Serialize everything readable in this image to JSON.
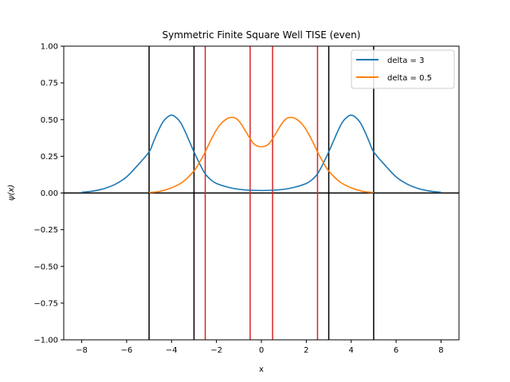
{
  "chart_data": {
    "type": "line",
    "title": "Symmetric Finite Square Well TISE (even)",
    "xlabel": "x",
    "ylabel": "ψ(x)",
    "xlim": [
      -8.8,
      8.8
    ],
    "ylim": [
      -1.0,
      1.0
    ],
    "xticks": [
      -8,
      -6,
      -4,
      -2,
      0,
      2,
      4,
      6,
      8
    ],
    "xtick_labels": [
      "−8",
      "−6",
      "−4",
      "−2",
      "0",
      "2",
      "4",
      "6",
      "8"
    ],
    "yticks": [
      1.0,
      0.75,
      0.5,
      0.25,
      0.0,
      -0.25,
      -0.5,
      -0.75,
      -1.0
    ],
    "ytick_labels": [
      "1.00",
      "0.75",
      "0.50",
      "0.25",
      "0.00",
      "−0.25",
      "−0.50",
      "−0.75",
      "−1.00"
    ],
    "grid": false,
    "legend_position": "top-right",
    "horizontal_lines": [
      {
        "y": 0,
        "color": "#000000"
      }
    ],
    "vertical_lines": [
      {
        "x": -5,
        "color": "#000000"
      },
      {
        "x": -3,
        "color": "#000000"
      },
      {
        "x": 3,
        "color": "#000000"
      },
      {
        "x": 5,
        "color": "#000000"
      },
      {
        "x": -2.5,
        "color": "#d62728"
      },
      {
        "x": -0.5,
        "color": "#d62728"
      },
      {
        "x": 0.5,
        "color": "#d62728"
      },
      {
        "x": 2.5,
        "color": "#d62728"
      }
    ],
    "series": [
      {
        "name": "delta = 3",
        "color": "#1f77b4",
        "x": [
          -8.0,
          -7.5,
          -7.0,
          -6.5,
          -6.0,
          -5.5,
          -5.0,
          -4.8,
          -4.6,
          -4.4,
          -4.2,
          -4.0,
          -3.8,
          -3.6,
          -3.4,
          -3.2,
          -3.0,
          -2.75,
          -2.5,
          -2.25,
          -2.0,
          -1.5,
          -1.0,
          -0.5,
          0.0,
          0.5,
          1.0,
          1.5,
          2.0,
          2.25,
          2.5,
          2.75,
          3.0,
          3.2,
          3.4,
          3.6,
          3.8,
          4.0,
          4.2,
          4.4,
          4.6,
          4.8,
          5.0,
          5.5,
          6.0,
          6.5,
          7.0,
          7.5,
          8.0
        ],
        "y": [
          0.005,
          0.013,
          0.03,
          0.06,
          0.11,
          0.19,
          0.28,
          0.35,
          0.42,
          0.48,
          0.515,
          0.53,
          0.515,
          0.48,
          0.42,
          0.35,
          0.28,
          0.2,
          0.13,
          0.09,
          0.065,
          0.04,
          0.025,
          0.019,
          0.017,
          0.019,
          0.025,
          0.04,
          0.065,
          0.09,
          0.13,
          0.2,
          0.28,
          0.35,
          0.42,
          0.48,
          0.515,
          0.53,
          0.515,
          0.48,
          0.42,
          0.35,
          0.28,
          0.19,
          0.11,
          0.06,
          0.03,
          0.013,
          0.005
        ]
      },
      {
        "name": "delta = 0.5",
        "color": "#ff7f0e",
        "x": [
          -5.0,
          -4.5,
          -4.0,
          -3.5,
          -3.0,
          -2.75,
          -2.5,
          -2.25,
          -2.0,
          -1.75,
          -1.5,
          -1.3,
          -1.1,
          -0.9,
          -0.7,
          -0.5,
          -0.3,
          0.0,
          0.3,
          0.5,
          0.7,
          0.9,
          1.1,
          1.3,
          1.5,
          1.75,
          2.0,
          2.25,
          2.5,
          2.75,
          3.0,
          3.5,
          4.0,
          4.5,
          5.0
        ],
        "y": [
          0.003,
          0.012,
          0.035,
          0.075,
          0.15,
          0.21,
          0.28,
          0.36,
          0.43,
          0.48,
          0.508,
          0.515,
          0.505,
          0.47,
          0.42,
          0.37,
          0.33,
          0.315,
          0.33,
          0.37,
          0.42,
          0.47,
          0.505,
          0.515,
          0.508,
          0.48,
          0.43,
          0.36,
          0.28,
          0.21,
          0.15,
          0.075,
          0.035,
          0.012,
          0.003
        ]
      }
    ]
  }
}
